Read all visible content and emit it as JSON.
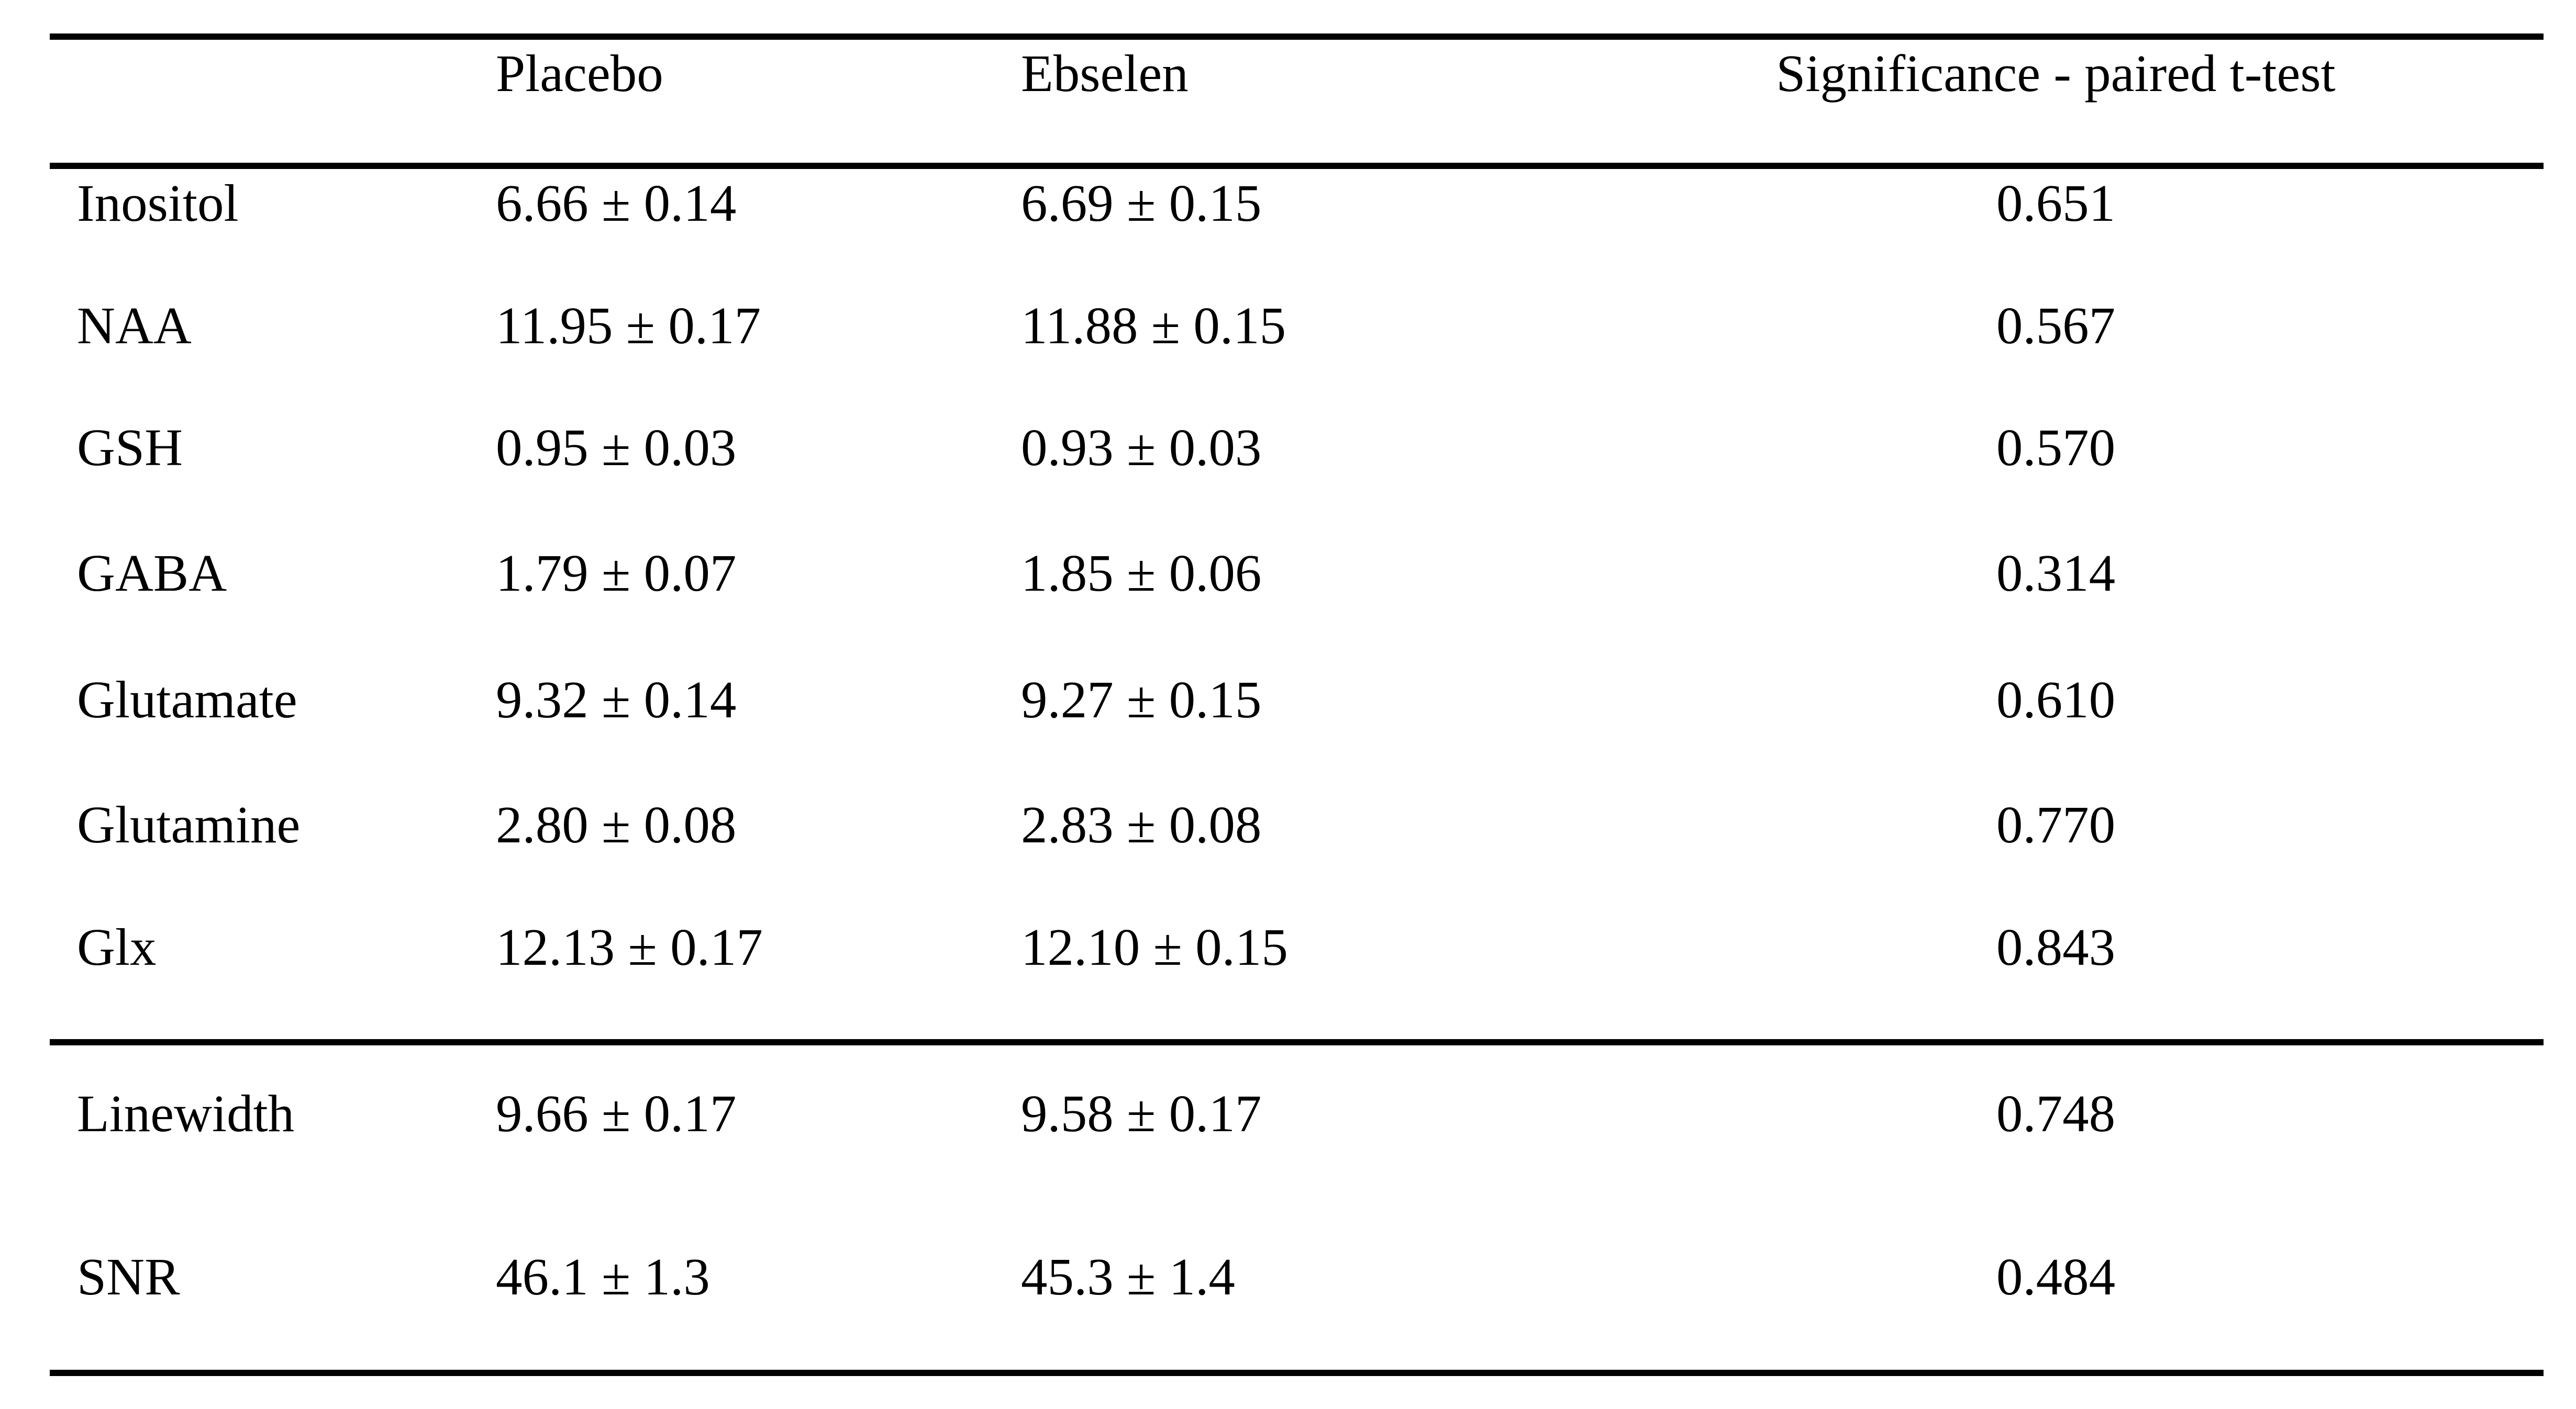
{
  "colors": {
    "background": "#ffffff",
    "text": "#000000",
    "rule": "#000000"
  },
  "chart_data": {
    "type": "table",
    "columns": [
      "",
      "Placebo",
      "Ebselen",
      "Significance - paired t-test"
    ],
    "section_break_after_row_index": 6,
    "rows": [
      {
        "label": "Inositol",
        "placebo": "6.66 ± 0.14",
        "ebselen": "6.69 ± 0.15",
        "significance": "0.651"
      },
      {
        "label": "NAA",
        "placebo": "11.95 ± 0.17",
        "ebselen": "11.88 ± 0.15",
        "significance": "0.567"
      },
      {
        "label": "GSH",
        "placebo": "0.95 ± 0.03",
        "ebselen": "0.93 ± 0.03",
        "significance": "0.570"
      },
      {
        "label": "GABA",
        "placebo": "1.79 ± 0.07",
        "ebselen": "1.85 ± 0.06",
        "significance": "0.314"
      },
      {
        "label": "Glutamate",
        "placebo": "9.32 ± 0.14",
        "ebselen": "9.27 ± 0.15",
        "significance": "0.610"
      },
      {
        "label": "Glutamine",
        "placebo": "2.80 ± 0.08",
        "ebselen": "2.83 ± 0.08",
        "significance": "0.770"
      },
      {
        "label": "Glx",
        "placebo": "12.13 ± 0.17",
        "ebselen": "12.10 ± 0.15",
        "significance": "0.843"
      },
      {
        "label": "Linewidth",
        "placebo": "9.66 ± 0.17",
        "ebselen": "9.58 ± 0.17",
        "significance": "0.748"
      },
      {
        "label": "SNR",
        "placebo": "46.1 ± 1.3",
        "ebselen": "45.3 ± 1.4",
        "significance": "0.484"
      }
    ]
  }
}
